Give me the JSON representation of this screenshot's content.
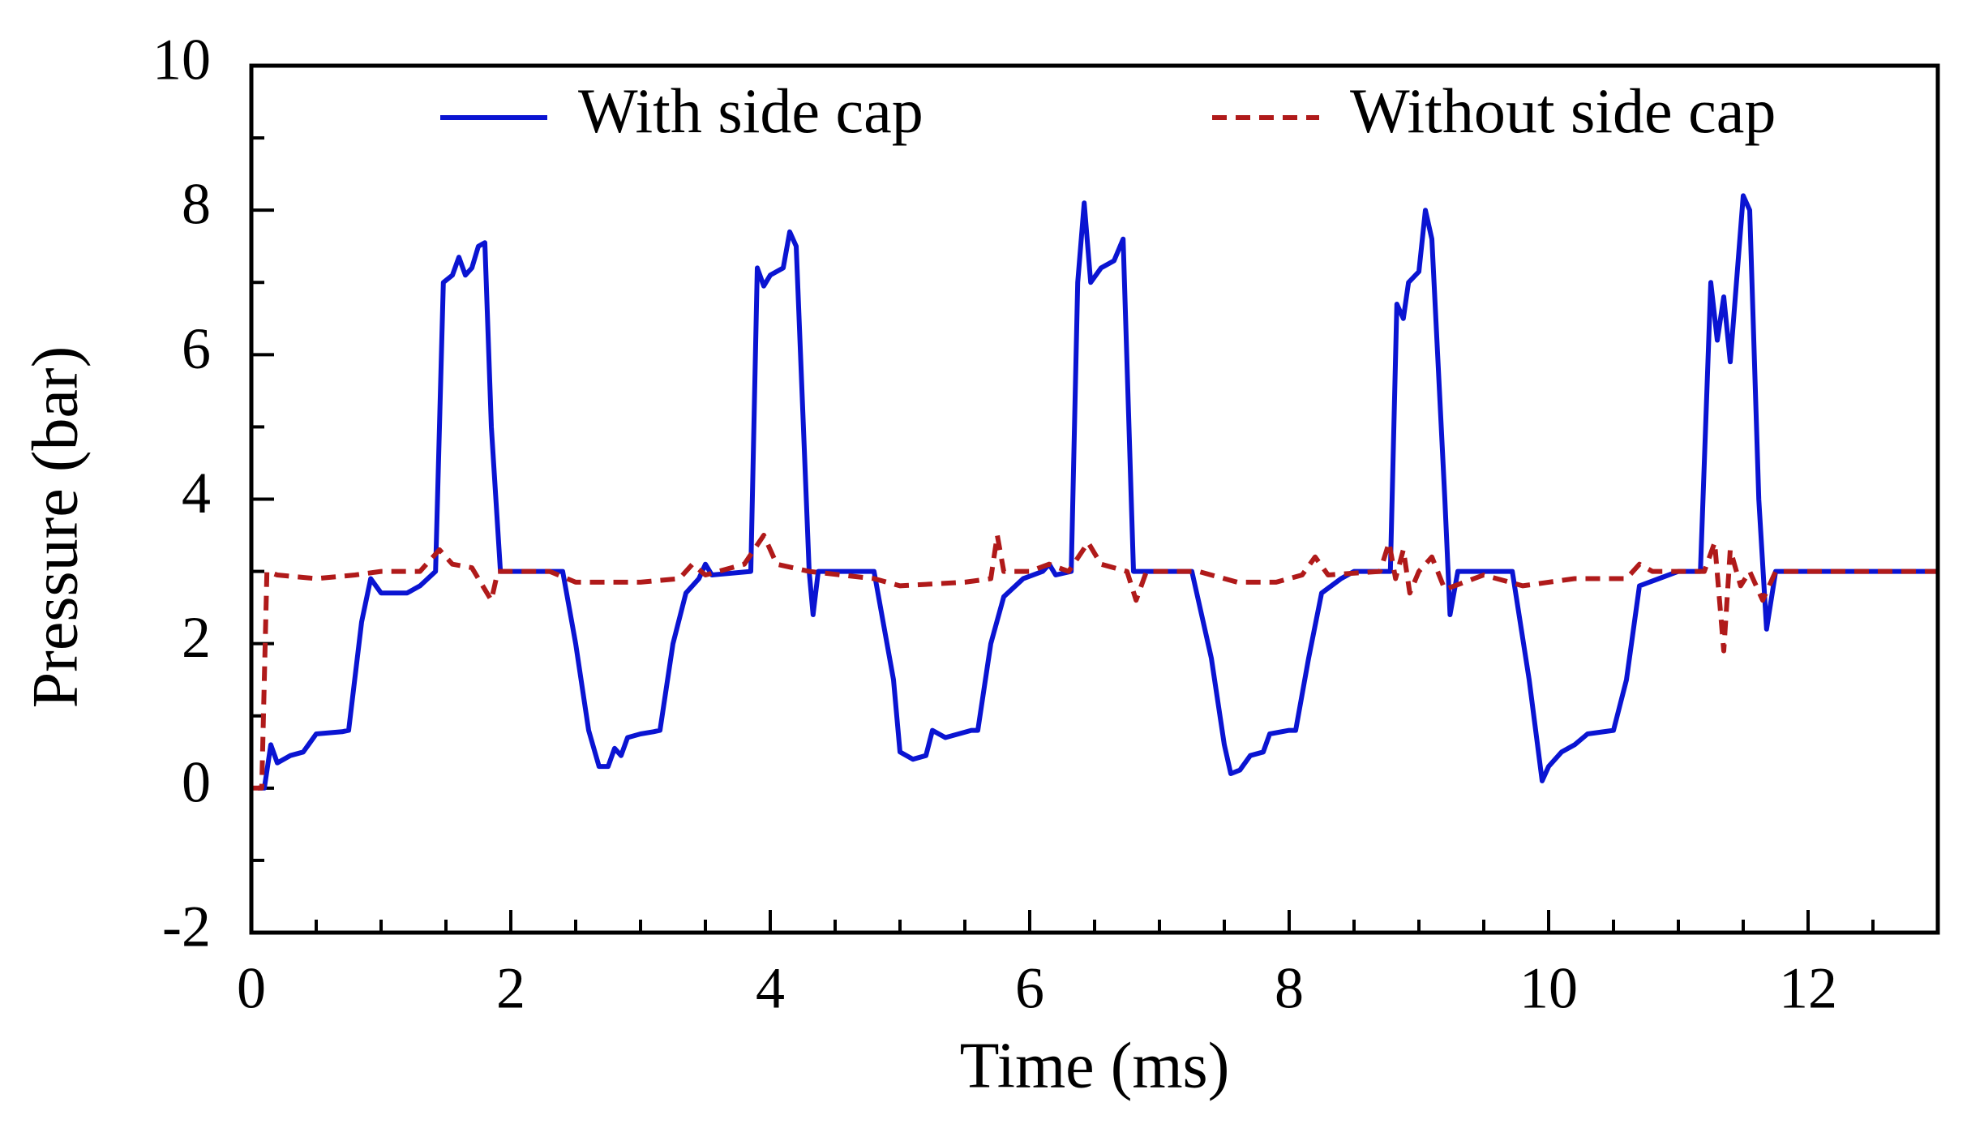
{
  "chart_data": {
    "type": "line",
    "xlabel": "Time (ms)",
    "ylabel": "Pressure (bar)",
    "xlim": [
      0,
      13
    ],
    "ylim": [
      -2,
      10
    ],
    "xticks": [
      0,
      2,
      4,
      6,
      8,
      10,
      12
    ],
    "yticks": [
      -2,
      0,
      2,
      4,
      6,
      8,
      10
    ],
    "xminorticks": [
      1,
      3,
      5,
      7,
      9,
      11,
      0.5,
      1.5,
      2.5,
      3.5,
      4.5,
      5.5,
      6.5,
      7.5,
      8.5,
      9.5,
      10.5,
      11.5,
      12.5
    ],
    "yminorticks": [
      -1,
      1,
      3,
      5,
      7,
      9
    ],
    "legend": "upper center",
    "series": [
      {
        "name": "With side cap",
        "color": "#0a14d2",
        "dash": "solid",
        "x": [
          0.05,
          0.1,
          0.15,
          0.2,
          0.3,
          0.4,
          0.5,
          0.7,
          0.75,
          0.85,
          0.92,
          1.0,
          1.2,
          1.3,
          1.42,
          1.48,
          1.55,
          1.6,
          1.65,
          1.7,
          1.75,
          1.8,
          1.85,
          1.92,
          2.4,
          2.5,
          2.6,
          2.68,
          2.75,
          2.8,
          2.85,
          2.9,
          3.0,
          3.1,
          3.15,
          3.25,
          3.35,
          3.45,
          3.5,
          3.55,
          3.85,
          3.9,
          3.95,
          4.0,
          4.1,
          4.15,
          4.2,
          4.3,
          4.33,
          4.37,
          4.8,
          4.95,
          5.0,
          5.05,
          5.1,
          5.2,
          5.25,
          5.35,
          5.55,
          5.6,
          5.7,
          5.8,
          5.95,
          6.1,
          6.15,
          6.2,
          6.32,
          6.37,
          6.42,
          6.47,
          6.55,
          6.65,
          6.72,
          6.8,
          7.25,
          7.4,
          7.5,
          7.55,
          7.62,
          7.7,
          7.8,
          7.85,
          8.0,
          8.05,
          8.15,
          8.25,
          8.4,
          8.5,
          8.78,
          8.83,
          8.88,
          8.92,
          9.0,
          9.05,
          9.1,
          9.2,
          9.24,
          9.3,
          9.72,
          9.85,
          9.95,
          10.0,
          10.1,
          10.2,
          10.3,
          10.5,
          10.6,
          10.7,
          10.85,
          11.0,
          11.17,
          11.25,
          11.3,
          11.35,
          11.4,
          11.5,
          11.55,
          11.62,
          11.68,
          11.75,
          13.0
        ],
        "values": [
          0,
          0.0,
          0.6,
          0.35,
          0.45,
          0.5,
          0.75,
          0.78,
          0.8,
          2.3,
          2.9,
          2.7,
          2.7,
          2.8,
          3.0,
          7.0,
          7.1,
          7.35,
          7.1,
          7.2,
          7.5,
          7.55,
          5.0,
          3.0,
          3.0,
          2.0,
          0.8,
          0.3,
          0.3,
          0.55,
          0.45,
          0.7,
          0.75,
          0.78,
          0.8,
          2.0,
          2.7,
          2.9,
          3.1,
          2.95,
          3.0,
          7.2,
          6.95,
          7.1,
          7.2,
          7.7,
          7.5,
          3.0,
          2.4,
          3.0,
          3.0,
          1.5,
          0.5,
          0.45,
          0.4,
          0.45,
          0.8,
          0.7,
          0.8,
          0.8,
          2.0,
          2.65,
          2.9,
          3.0,
          3.1,
          2.95,
          3.0,
          7.0,
          8.1,
          7.0,
          7.2,
          7.3,
          7.6,
          3.0,
          3.0,
          1.8,
          0.6,
          0.2,
          0.25,
          0.45,
          0.5,
          0.75,
          0.8,
          0.8,
          1.8,
          2.7,
          2.9,
          3.0,
          3.0,
          6.7,
          6.5,
          7.0,
          7.15,
          8.0,
          7.6,
          4.0,
          2.4,
          3.0,
          3.0,
          1.5,
          0.1,
          0.3,
          0.5,
          0.6,
          0.75,
          0.8,
          1.5,
          2.8,
          2.9,
          3.0,
          3.0,
          7.0,
          6.2,
          6.8,
          5.9,
          8.2,
          8.0,
          4.0,
          2.2,
          3.0,
          3.0
        ]
      },
      {
        "name": "Without side cap",
        "color": "#b01a1a",
        "dash": "dashed",
        "x": [
          0,
          0.08,
          0.12,
          0.2,
          0.5,
          0.8,
          1.0,
          1.3,
          1.45,
          1.55,
          1.7,
          1.85,
          1.9,
          2.3,
          2.5,
          3.0,
          3.3,
          3.4,
          3.5,
          3.8,
          3.95,
          4.05,
          4.3,
          4.8,
          5.0,
          5.5,
          5.7,
          5.75,
          5.8,
          6.0,
          6.15,
          6.3,
          6.45,
          6.55,
          6.75,
          6.82,
          6.9,
          7.3,
          7.6,
          7.9,
          8.1,
          8.2,
          8.3,
          8.7,
          8.77,
          8.82,
          8.88,
          8.93,
          9.0,
          9.1,
          9.2,
          9.5,
          9.8,
          10.2,
          10.6,
          10.7,
          10.8,
          11.2,
          11.28,
          11.35,
          11.4,
          11.48,
          11.55,
          11.65,
          11.75,
          13
        ],
        "values": [
          0,
          0,
          3.0,
          2.95,
          2.9,
          2.95,
          3.0,
          3.0,
          3.3,
          3.1,
          3.05,
          2.6,
          3.0,
          3.0,
          2.85,
          2.85,
          2.9,
          3.1,
          2.95,
          3.1,
          3.5,
          3.1,
          3.0,
          2.9,
          2.8,
          2.85,
          2.9,
          3.5,
          3.0,
          3.0,
          3.1,
          3.0,
          3.4,
          3.1,
          3.0,
          2.6,
          3.0,
          3.0,
          2.85,
          2.85,
          2.95,
          3.2,
          2.95,
          3.0,
          3.4,
          2.9,
          3.3,
          2.7,
          3.0,
          3.2,
          2.75,
          2.95,
          2.8,
          2.9,
          2.9,
          3.1,
          3.0,
          3.0,
          3.4,
          1.9,
          3.3,
          2.8,
          3.0,
          2.6,
          3.0,
          3.0
        ]
      }
    ]
  }
}
